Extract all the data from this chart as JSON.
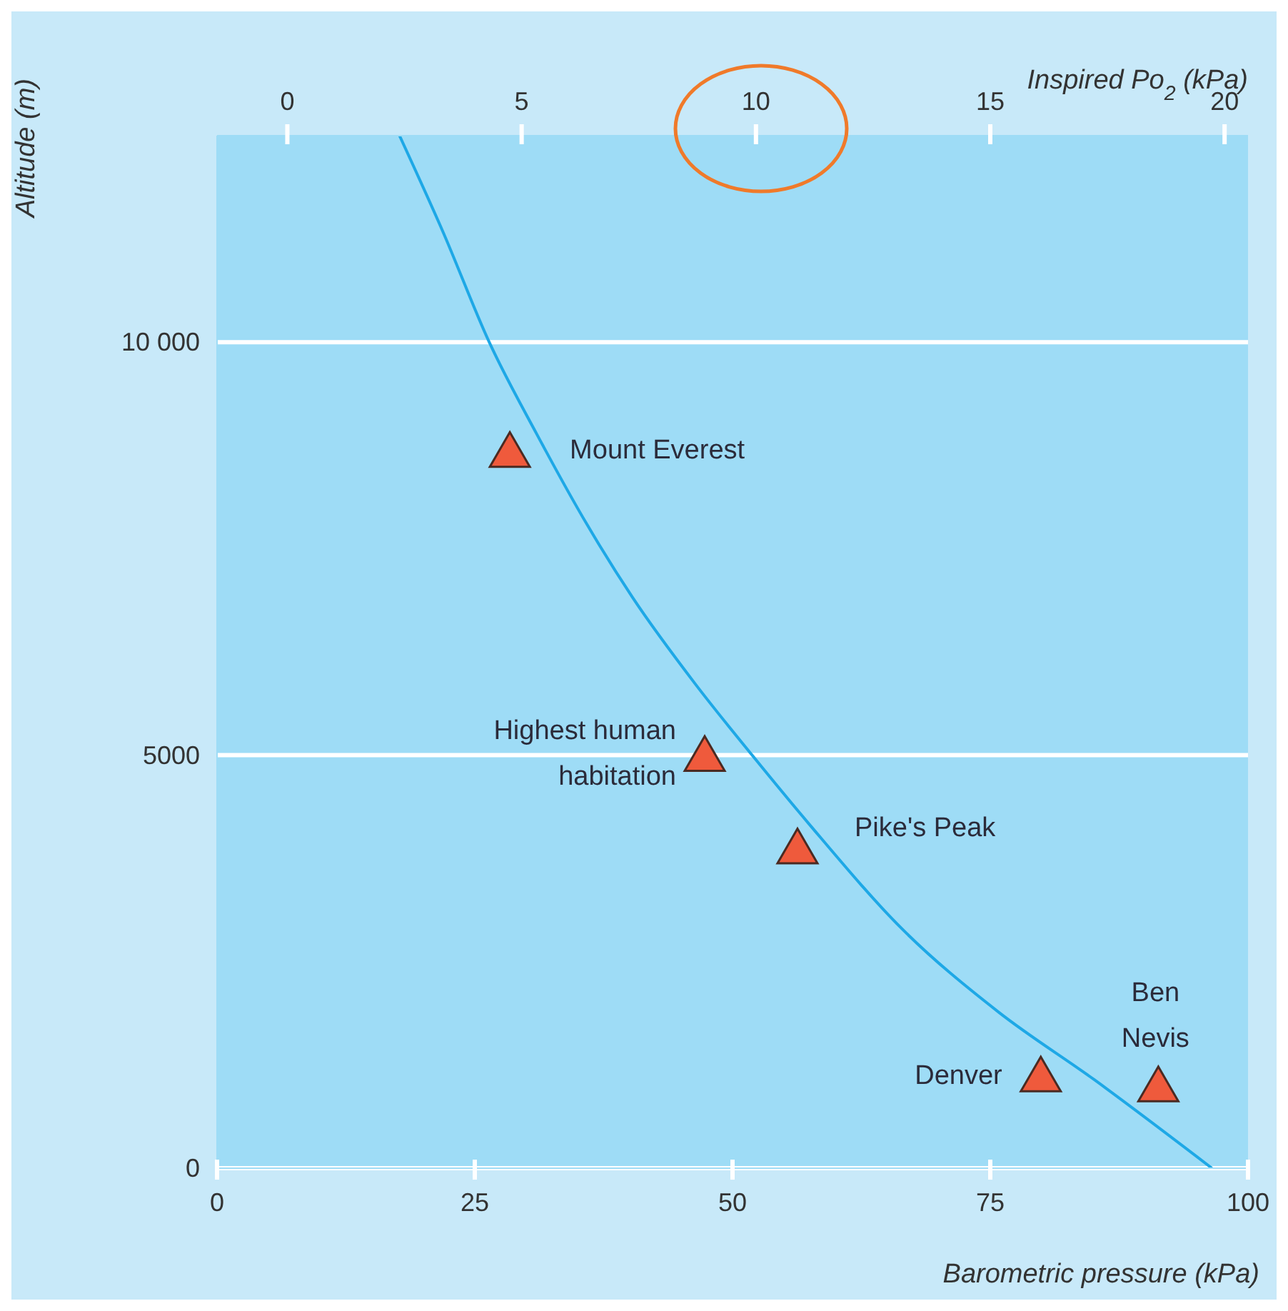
{
  "chart_data": {
    "type": "scatter",
    "xlabel": "Barometric pressure (kPa)",
    "ylabel": "Altitude (m)",
    "x2label": "Inspired Po$_{2}$ (kPa)",
    "xlim": [
      0,
      100
    ],
    "xticks": [
      0,
      25,
      50,
      75,
      100
    ],
    "x2lim": [
      -1.5,
      20.5
    ],
    "x2ticks": [
      0,
      5,
      10,
      15,
      20
    ],
    "ylim": [
      0,
      12500
    ],
    "yticks": [
      0,
      5000,
      {
        "value": 10000,
        "label": "10 000"
      }
    ],
    "grid": "y",
    "series": [
      {
        "type": "line",
        "color": "#1ea8e6",
        "marker": "none",
        "line_style": "solid",
        "x": [
          17.7,
          21.9,
          26.4,
          31.0,
          35.9,
          40.3,
          46.4,
          51.9,
          57.4,
          66.5,
          75.8,
          85.1,
          96.5
        ],
        "values": [
          12500,
          11340,
          10000,
          8890,
          7790,
          6910,
          5860,
          5000,
          4170,
          2890,
          1890,
          1070,
          0
        ]
      },
      {
        "color": "#ef5a3c",
        "marker": "triangle",
        "x": [
          28.4,
          47.3,
          56.3,
          79.9,
          91.3
        ],
        "values": [
          8700,
          5020,
          3900,
          1140,
          1020
        ]
      }
    ],
    "annotations": [
      {
        "text": "Mount Everest",
        "x": 28.4,
        "y": 8700
      },
      {
        "text": "Highest human habitation",
        "x": 47.3,
        "y": 5020
      },
      {
        "text": "Pike's Peak",
        "x": 56.3,
        "y": 3900
      },
      {
        "text": "Denver",
        "x": 79.9,
        "y": 1140
      },
      {
        "text": "Ben Nevis",
        "x": 91.3,
        "y": 1020
      }
    ]
  }
}
